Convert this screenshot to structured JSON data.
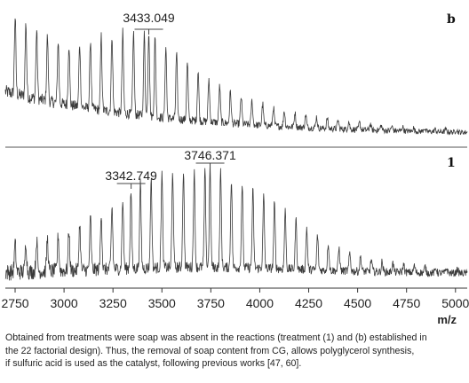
{
  "chart_data": [
    {
      "type": "line",
      "panel_label": "b",
      "xlim": [
        2700,
        5060
      ],
      "annotations": [
        {
          "text": "3433.049",
          "x": 3433.049
        }
      ],
      "series": [
        {
          "peaks_x": [
            2750,
            2805,
            2860,
            2915,
            2970,
            3025,
            3080,
            3135,
            3190,
            3245,
            3300,
            3355,
            3410,
            3433,
            3465,
            3520,
            3575,
            3630,
            3685,
            3740,
            3795,
            3850,
            3905,
            3960,
            4015,
            4070,
            4125,
            4180,
            4235,
            4290,
            4345,
            4400,
            4455,
            4510,
            4565,
            4620,
            4675,
            4730,
            4785,
            4840,
            4895,
            4950,
            5005
          ],
          "peaks_rel_intensity": [
            0.9,
            0.85,
            0.8,
            0.76,
            0.73,
            0.71,
            0.73,
            0.8,
            0.86,
            0.9,
            0.94,
            0.97,
            0.95,
            1.0,
            0.92,
            0.84,
            0.76,
            0.67,
            0.58,
            0.5,
            0.43,
            0.37,
            0.32,
            0.28,
            0.25,
            0.22,
            0.19,
            0.17,
            0.15,
            0.13,
            0.12,
            0.1,
            0.09,
            0.08,
            0.07,
            0.06,
            0.05,
            0.05,
            0.04,
            0.04,
            0.03,
            0.03,
            0.03
          ]
        }
      ]
    },
    {
      "type": "line",
      "panel_label": "1",
      "xlim": [
        2700,
        5060
      ],
      "annotations": [
        {
          "text": "3342.749",
          "x": 3342.749
        },
        {
          "text": "3746.371",
          "x": 3746.371
        }
      ],
      "series": [
        {
          "peaks_x": [
            2750,
            2805,
            2860,
            2915,
            2970,
            3025,
            3080,
            3135,
            3190,
            3245,
            3300,
            3342,
            3390,
            3445,
            3500,
            3555,
            3610,
            3665,
            3720,
            3746,
            3800,
            3855,
            3910,
            3965,
            4020,
            4075,
            4130,
            4185,
            4240,
            4295,
            4350,
            4405,
            4460,
            4515,
            4570,
            4625,
            4680,
            4735,
            4790,
            4845,
            4900,
            4955,
            5010
          ],
          "peaks_rel_intensity": [
            0.28,
            0.3,
            0.32,
            0.33,
            0.36,
            0.4,
            0.46,
            0.52,
            0.58,
            0.63,
            0.7,
            0.78,
            0.84,
            0.9,
            0.95,
            0.96,
            0.98,
            0.97,
            0.96,
            1.0,
            0.95,
            0.9,
            0.84,
            0.78,
            0.72,
            0.65,
            0.58,
            0.5,
            0.42,
            0.35,
            0.28,
            0.23,
            0.18,
            0.15,
            0.12,
            0.1,
            0.09,
            0.08,
            0.07,
            0.06,
            0.05,
            0.05,
            0.04
          ]
        }
      ]
    }
  ],
  "axis": {
    "x_ticks": [
      2750,
      3000,
      3250,
      3500,
      3750,
      4000,
      4250,
      4500,
      4750,
      5000
    ],
    "x_label": "m/z"
  },
  "caption_lines": [
    "Obtained from treatments were soap was absent in the reactions (treatment (1) and (b) established in",
    "the 22 factorial design). Thus, the removal of soap content from CG, allows polyglycerol synthesis,",
    "if sulfuric acid is used as the catalyst, following  previous works [47, 60]."
  ]
}
